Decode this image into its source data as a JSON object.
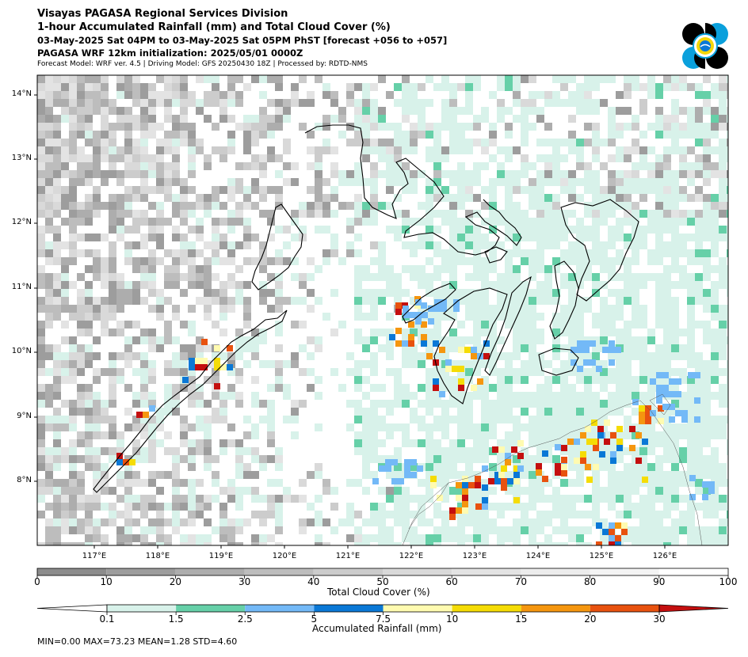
{
  "header": {
    "title": "Visayas PAGASA Regional Services Division",
    "subtitle": "1-hour Accumulated Rainfall (mm) and Total Cloud Cover (%)",
    "period": "03-May-2025 Sat 04PM to 03-May-2025 Sat 05PM PhST [forecast +056 to +057]",
    "init": "PAGASA WRF 12km initialization: 2025/05/01 0000Z",
    "model": "Forecast Model: WRF ver. 4.5 | Driving Model: GFS 20250430 18Z | Processed by: RDTD-NMS"
  },
  "map": {
    "lat_labels": [
      "14°N",
      "13°N",
      "12°N",
      "11°N",
      "10°N",
      "9°N",
      "8°N"
    ],
    "lon_labels": [
      "117°E",
      "118°E",
      "119°E",
      "120°E",
      "121°E",
      "122°E",
      "123°E",
      "124°E",
      "125°E",
      "126°E"
    ]
  },
  "cloud_colorbar": {
    "label": "Total Cloud Cover (%)",
    "ticks": [
      "0",
      "10",
      "20",
      "30",
      "40",
      "50",
      "60",
      "70",
      "80",
      "90",
      "100"
    ],
    "colors": [
      "#8c8c8c",
      "#9d9d9d",
      "#adadad",
      "#bdbdbd",
      "#cccccc",
      "#d9d9d9",
      "#e3e3e3",
      "#ececec",
      "#f4f4f4",
      "#ffffff"
    ]
  },
  "rain_colorbar": {
    "label": "Accumulated Rainfall (mm)",
    "ticks": [
      "0.1",
      "1.5",
      "2.5",
      "5",
      "7.5",
      "10",
      "15",
      "20",
      "30"
    ],
    "colors": [
      "#d8f2ea",
      "#66d0a8",
      "#73b9f7",
      "#0a78d6",
      "#fffbb0",
      "#f5dc05",
      "#f5960f",
      "#e8520f",
      "#c40f0f"
    ]
  },
  "stats": "MIN=0.00   MAX=73.23   MEAN=1.28   STD=4.60"
}
